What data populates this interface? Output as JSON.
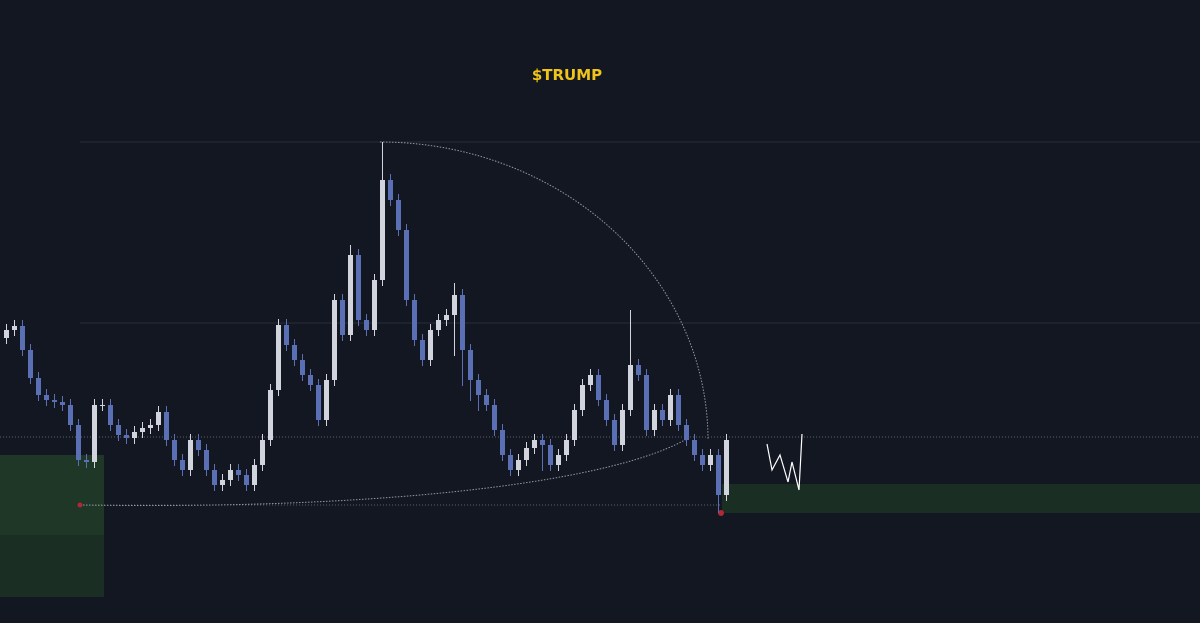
{
  "chart_data": {
    "type": "candlestick",
    "title": "$TRUMP",
    "ylim": [
      0,
      623
    ],
    "up_color": "#d1d4dc",
    "down_color": "#5b6fb5",
    "open": [
      285,
      293,
      297,
      273,
      245,
      228,
      223,
      221,
      218,
      198,
      163,
      161,
      218,
      218,
      198,
      188,
      185,
      191,
      195,
      198,
      211,
      183,
      163,
      153,
      183,
      173,
      153,
      138,
      143,
      153,
      148,
      138,
      158,
      183,
      233,
      298,
      278,
      263,
      248,
      238,
      203,
      243,
      323,
      288,
      368,
      303,
      293,
      343,
      443,
      423,
      393,
      323,
      283,
      263,
      293,
      303,
      308,
      328,
      273,
      243,
      228,
      218,
      193,
      168,
      153,
      163,
      175,
      183,
      178,
      158,
      168,
      183,
      213,
      238,
      248,
      223,
      203,
      178,
      213,
      258,
      248,
      193,
      213,
      203,
      228,
      198,
      183,
      168,
      158,
      168,
      128
    ],
    "high": [
      299,
      303,
      303,
      279,
      251,
      234,
      229,
      227,
      224,
      204,
      169,
      224,
      224,
      224,
      204,
      194,
      197,
      201,
      204,
      217,
      217,
      189,
      169,
      189,
      189,
      179,
      159,
      149,
      159,
      159,
      154,
      164,
      189,
      239,
      304,
      304,
      284,
      269,
      254,
      244,
      249,
      329,
      329,
      378,
      374,
      309,
      349,
      481,
      449,
      429,
      399,
      329,
      289,
      299,
      309,
      314,
      340,
      334,
      279,
      249,
      234,
      224,
      199,
      174,
      169,
      181,
      189,
      189,
      184,
      174,
      189,
      219,
      244,
      254,
      254,
      229,
      209,
      219,
      313,
      264,
      254,
      219,
      219,
      234,
      234,
      204,
      189,
      174,
      174,
      174,
      189
    ],
    "low": [
      279,
      287,
      267,
      239,
      222,
      217,
      215,
      212,
      192,
      157,
      155,
      155,
      212,
      192,
      182,
      179,
      179,
      185,
      189,
      192,
      177,
      157,
      147,
      147,
      167,
      147,
      132,
      132,
      137,
      142,
      132,
      132,
      152,
      177,
      227,
      272,
      257,
      242,
      232,
      197,
      197,
      237,
      282,
      282,
      297,
      287,
      287,
      337,
      417,
      387,
      317,
      277,
      257,
      257,
      287,
      297,
      267,
      237,
      222,
      212,
      212,
      187,
      162,
      147,
      147,
      157,
      169,
      152,
      152,
      152,
      162,
      177,
      207,
      232,
      217,
      197,
      172,
      172,
      207,
      242,
      187,
      187,
      197,
      197,
      192,
      177,
      162,
      152,
      152,
      110,
      122
    ],
    "close": [
      293,
      297,
      273,
      245,
      228,
      223,
      221,
      218,
      198,
      163,
      161,
      218,
      218,
      198,
      188,
      185,
      191,
      195,
      198,
      211,
      183,
      163,
      153,
      183,
      173,
      153,
      138,
      143,
      153,
      148,
      138,
      158,
      183,
      233,
      298,
      278,
      263,
      248,
      238,
      203,
      243,
      323,
      288,
      368,
      303,
      293,
      343,
      443,
      423,
      393,
      323,
      283,
      263,
      293,
      303,
      308,
      328,
      273,
      243,
      228,
      218,
      193,
      168,
      153,
      163,
      175,
      183,
      178,
      158,
      168,
      183,
      213,
      238,
      248,
      223,
      203,
      178,
      213,
      258,
      248,
      193,
      213,
      203,
      228,
      198,
      183,
      168,
      158,
      168,
      128,
      183
    ]
  }
}
